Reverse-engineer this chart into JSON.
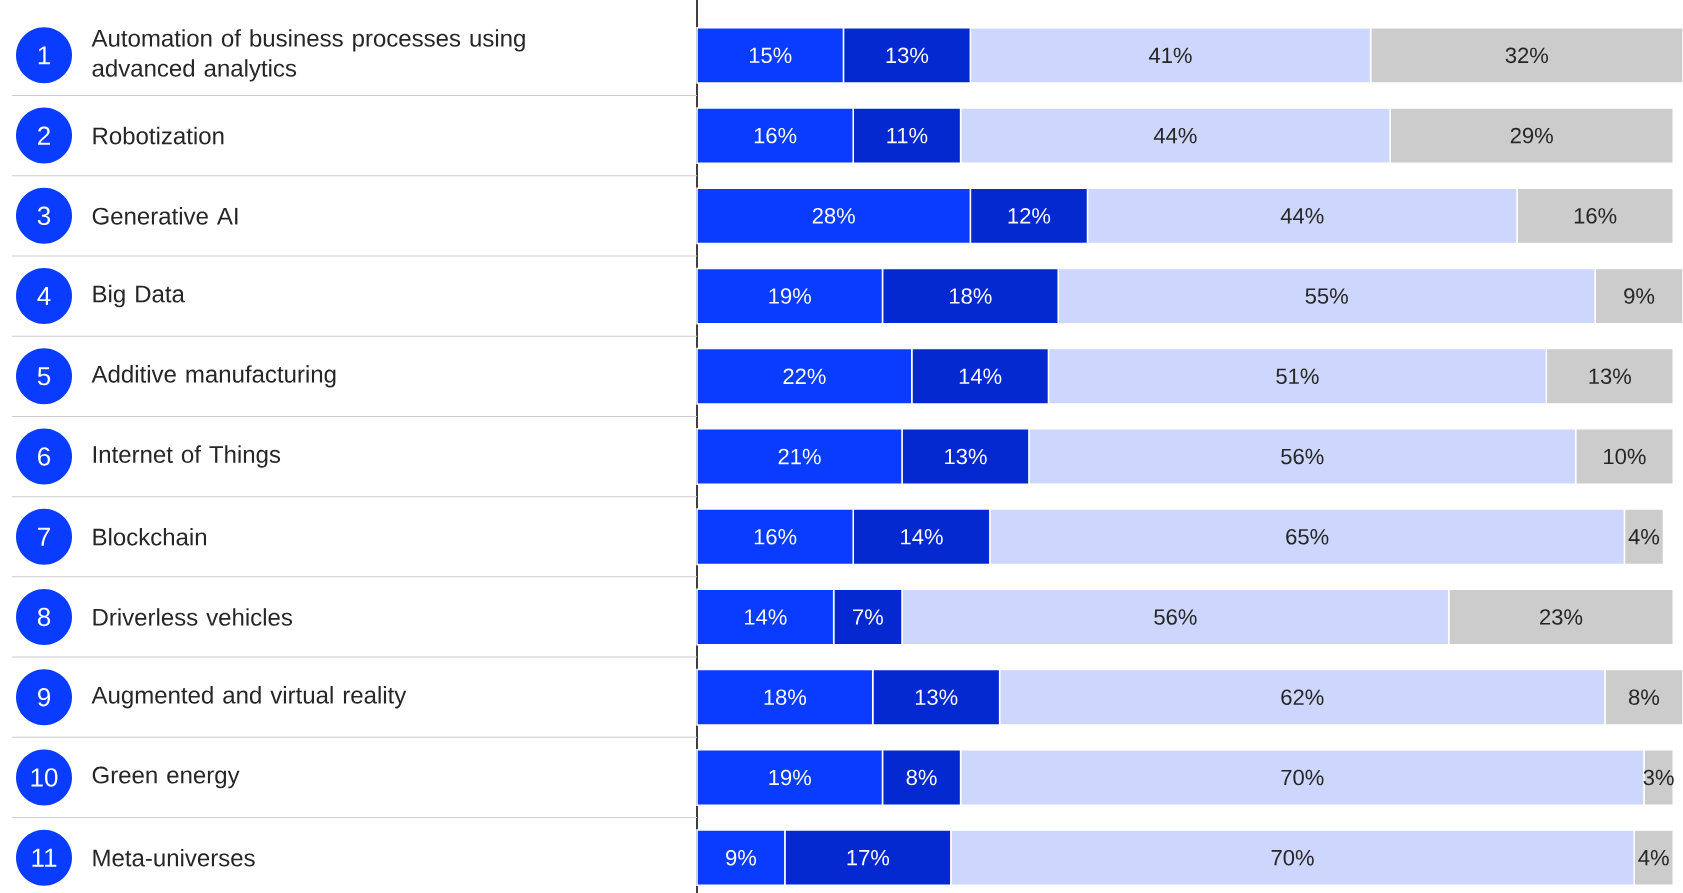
{
  "chart_data": {
    "type": "bar",
    "orientation": "horizontal",
    "stacked": true,
    "categories": [
      "Automation of business processes using advanced analytics",
      "Robotization",
      "Generative AI",
      "Big Data",
      "Additive manufacturing",
      "Internet of Things",
      "Blockchain",
      "Driverless vehicles",
      "Augmented and virtual reality",
      "Green energy",
      "Meta-universes"
    ],
    "annotations": [
      "1",
      "2",
      "3",
      "4",
      "5",
      "6",
      "7",
      "8",
      "9",
      "10",
      "11"
    ],
    "tick_labels": "y",
    "series": [
      {
        "color": "#0a3cff",
        "values": [
          15,
          16,
          28,
          19,
          22,
          21,
          16,
          14,
          18,
          19,
          9
        ],
        "value_labels": [
          "15%",
          "16%",
          "28%",
          "19%",
          "22%",
          "21%",
          "16%",
          "14%",
          "18%",
          "19%",
          "9%"
        ]
      },
      {
        "color": "#0529d0",
        "values": [
          13,
          11,
          12,
          18,
          14,
          13,
          14,
          7,
          13,
          8,
          17
        ],
        "value_labels": [
          "13%",
          "11%",
          "12%",
          "18%",
          "14%",
          "13%",
          "14%",
          "7%",
          "13%",
          "8%",
          "17%"
        ]
      },
      {
        "color": "#cdd6fc",
        "values": [
          41,
          44,
          44,
          55,
          51,
          56,
          65,
          56,
          62,
          70,
          70
        ],
        "value_labels": [
          "41%",
          "44%",
          "44%",
          "55%",
          "51%",
          "56%",
          "65%",
          "56%",
          "62%",
          "70%",
          "70%"
        ]
      },
      {
        "color": "#cccccc",
        "values": [
          32,
          29,
          16,
          9,
          13,
          10,
          4,
          23,
          8,
          3,
          4
        ],
        "value_labels": [
          "32%",
          "29%",
          "16%",
          "9%",
          "13%",
          "10%",
          "4%",
          "23%",
          "8%",
          "3%",
          "4%"
        ]
      }
    ]
  }
}
